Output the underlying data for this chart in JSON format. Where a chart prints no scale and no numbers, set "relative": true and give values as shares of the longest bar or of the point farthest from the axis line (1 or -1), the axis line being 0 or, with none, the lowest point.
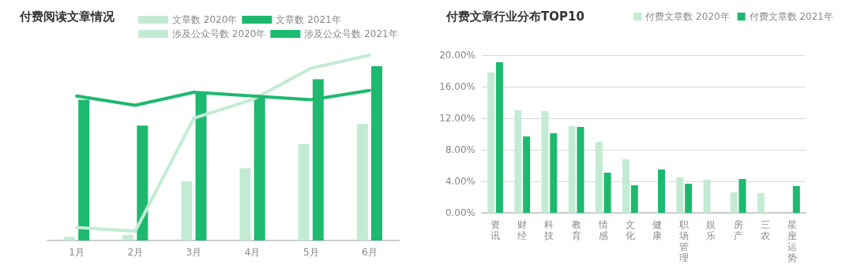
{
  "chart_data": [
    {
      "type": "bar",
      "title": "付费阅读文章情况",
      "relative": true,
      "categories": [
        "1月",
        "2月",
        "3月",
        "4月",
        "5月",
        "6月"
      ],
      "legend": "top right",
      "grid": false,
      "marker": "none",
      "series": [
        {
          "name": "文章数 2020年",
          "type": "bar",
          "color": "#c3ebd4",
          "values": [
            0.02,
            0.03,
            0.32,
            0.39,
            0.52,
            0.63
          ]
        },
        {
          "name": "文章数 2021年",
          "type": "bar",
          "color": "#1db96f",
          "values": [
            0.76,
            0.62,
            0.8,
            0.78,
            0.87,
            0.94
          ]
        },
        {
          "name": "涉及公众号数 2020年",
          "type": "line",
          "color": "#c3ebd4",
          "values": [
            0.07,
            0.05,
            0.66,
            0.76,
            0.93,
            1
          ]
        },
        {
          "name": "涉及公众号数 2021年",
          "type": "line",
          "color": "#1db96f",
          "values": [
            0.78,
            0.73,
            0.8,
            0.78,
            0.76,
            0.81
          ]
        }
      ]
    },
    {
      "type": "bar",
      "title": "付费文章行业分布TOP10",
      "categories": [
        "资讯",
        "财经",
        "科技",
        "教育",
        "情感",
        "文化",
        "健康",
        "职场管理",
        "娱乐",
        "房产",
        "三农",
        "星座运势"
      ],
      "legend": "top right",
      "grid": "y",
      "ylim": [
        0,
        20
      ],
      "yticks": [
        {
          "value": 0,
          "label": "0.00%"
        },
        {
          "value": 4,
          "label": "4.00%"
        },
        {
          "value": 8,
          "label": "8.00%"
        },
        {
          "value": 12,
          "label": "12.00%"
        },
        {
          "value": 16,
          "label": "16.00%"
        },
        {
          "value": 20,
          "label": "20.00%"
        }
      ],
      "series": [
        {
          "name": "付费文章数 2020年",
          "color": "#c3ebd4",
          "values": [
            17.8,
            13.0,
            12.9,
            11.0,
            9.0,
            6.8,
            null,
            4.5,
            4.2,
            2.6,
            2.5,
            null
          ]
        },
        {
          "name": "付费文章数 2021年",
          "color": "#1db96f",
          "values": [
            19.1,
            9.7,
            10.1,
            10.9,
            5.1,
            3.5,
            5.5,
            3.7,
            null,
            4.3,
            null,
            3.4
          ]
        }
      ]
    }
  ]
}
